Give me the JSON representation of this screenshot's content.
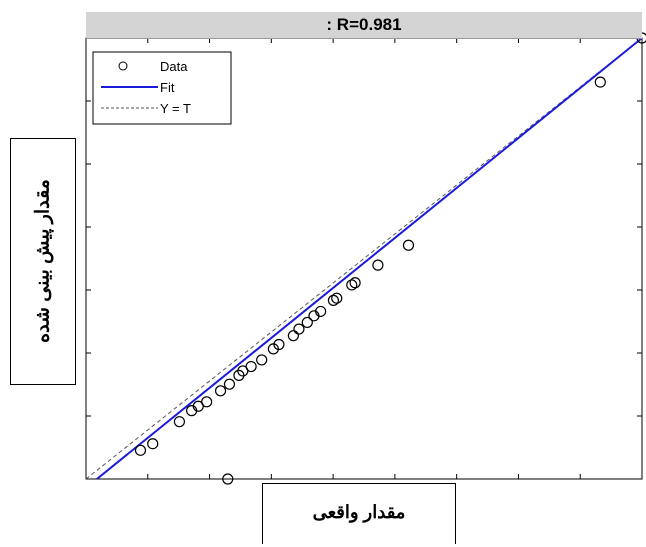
{
  "chart_data": {
    "type": "scatter",
    "title": ": R=0.981",
    "xlabel": "مقدار واقعی",
    "ylabel": "مقدار پیش بینی شده",
    "xlim": [
      0,
      1
    ],
    "ylim": [
      0,
      1
    ],
    "grid": false,
    "legend_position": "top-left",
    "legend": [
      "Data",
      "Fit",
      "Y = T"
    ],
    "series": [
      {
        "name": "Data",
        "marker": "circle",
        "color": "#000000",
        "x": [
          0.098,
          0.12,
          0.168,
          0.19,
          0.202,
          0.217,
          0.242,
          0.258,
          0.275,
          0.282,
          0.297,
          0.316,
          0.337,
          0.347,
          0.373,
          0.383,
          0.398,
          0.41,
          0.422,
          0.445,
          0.451,
          0.478,
          0.484,
          0.525,
          0.58,
          0.925,
          1.0
        ],
        "y": [
          0.065,
          0.08,
          0.13,
          0.155,
          0.165,
          0.175,
          0.2,
          0.215,
          0.235,
          0.245,
          0.255,
          0.27,
          0.295,
          0.305,
          0.325,
          0.34,
          0.355,
          0.37,
          0.38,
          0.405,
          0.41,
          0.44,
          0.445,
          0.485,
          0.53,
          0.9,
          1.0
        ]
      }
    ],
    "fit": {
      "name": "Fit",
      "color": "#1a1adc",
      "x": [
        0.0,
        1.0
      ],
      "y": [
        -0.02,
        1.0
      ]
    },
    "identity": {
      "name": "Y = T",
      "color": "#555555",
      "x": [
        0.0,
        1.0
      ],
      "y": [
        0.0,
        1.0
      ]
    },
    "extra_marker": {
      "x": 0.255,
      "y": -0.01
    }
  }
}
